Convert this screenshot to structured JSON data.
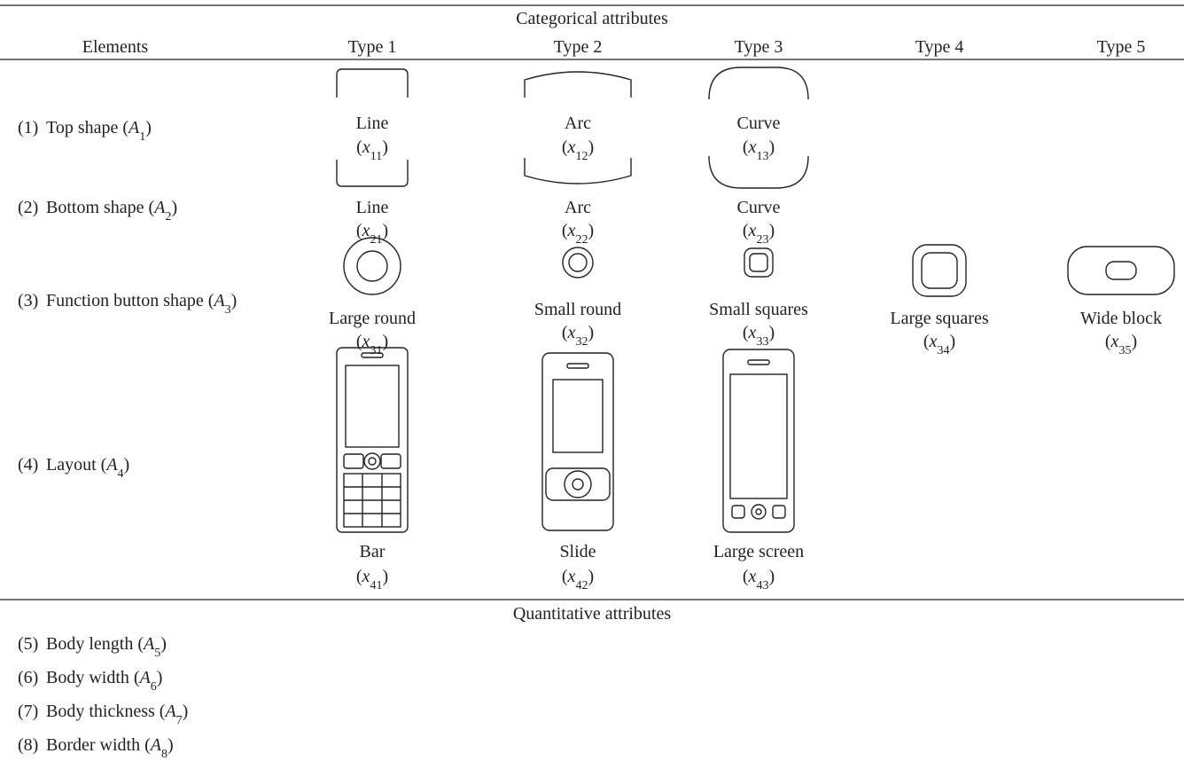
{
  "header": {
    "categorical": "Categorical attributes",
    "quantitative": "Quantitative attributes"
  },
  "columns": [
    "Elements",
    "Type 1",
    "Type 2",
    "Type 3",
    "Type 4",
    "Type 5"
  ],
  "categorical_rows": [
    {
      "num": "(1)",
      "label": [
        "Top shape (",
        "A",
        "1",
        ")"
      ],
      "cells": [
        {
          "name": "Line",
          "code": [
            "(",
            "x",
            "11",
            ")"
          ]
        },
        {
          "name": "Arc",
          "code": [
            "(",
            "x",
            "12",
            ")"
          ]
        },
        {
          "name": "Curve",
          "code": [
            "(",
            "x",
            "13",
            ")"
          ]
        }
      ]
    },
    {
      "num": "(2)",
      "label": [
        "Bottom shape (",
        "A",
        "2",
        ")"
      ],
      "cells": [
        {
          "name": "Line",
          "code": [
            "(",
            "x",
            "21",
            ")"
          ]
        },
        {
          "name": "Arc",
          "code": [
            "(",
            "x",
            "22",
            ")"
          ]
        },
        {
          "name": "Curve",
          "code": [
            "(",
            "x",
            "23",
            ")"
          ]
        }
      ]
    },
    {
      "num": "(3)",
      "label": [
        "Function button shape (",
        "A",
        "3",
        ")"
      ],
      "cells": [
        {
          "name": "Large round",
          "code": [
            "(",
            "x",
            "31",
            ")"
          ]
        },
        {
          "name": "Small round",
          "code": [
            "(",
            "x",
            "32",
            ")"
          ]
        },
        {
          "name": "Small squares",
          "code": [
            "(",
            "x",
            "33",
            ")"
          ]
        },
        {
          "name": "Large squares",
          "code": [
            "(",
            "x",
            "34",
            ")"
          ]
        },
        {
          "name": "Wide block",
          "code": [
            "(",
            "x",
            "35",
            ")"
          ]
        }
      ]
    },
    {
      "num": "(4)",
      "label": [
        "Layout (",
        "A",
        "4",
        ")"
      ],
      "cells": [
        {
          "name": "Bar",
          "code": [
            "(",
            "x",
            "41",
            ")"
          ]
        },
        {
          "name": "Slide",
          "code": [
            "(",
            "x",
            "42",
            ")"
          ]
        },
        {
          "name": "Large screen",
          "code": [
            "(",
            "x",
            "43",
            ")"
          ]
        }
      ]
    }
  ],
  "quantitative_rows": [
    {
      "num": "(5)",
      "label": [
        "Body length (",
        "A",
        "5",
        ")"
      ]
    },
    {
      "num": "(6)",
      "label": [
        "Body width (",
        "A",
        "6",
        ")"
      ]
    },
    {
      "num": "(7)",
      "label": [
        "Body thickness (",
        "A",
        "7",
        ")"
      ]
    },
    {
      "num": "(8)",
      "label": [
        "Border width (",
        "A",
        "8",
        ")"
      ]
    }
  ]
}
